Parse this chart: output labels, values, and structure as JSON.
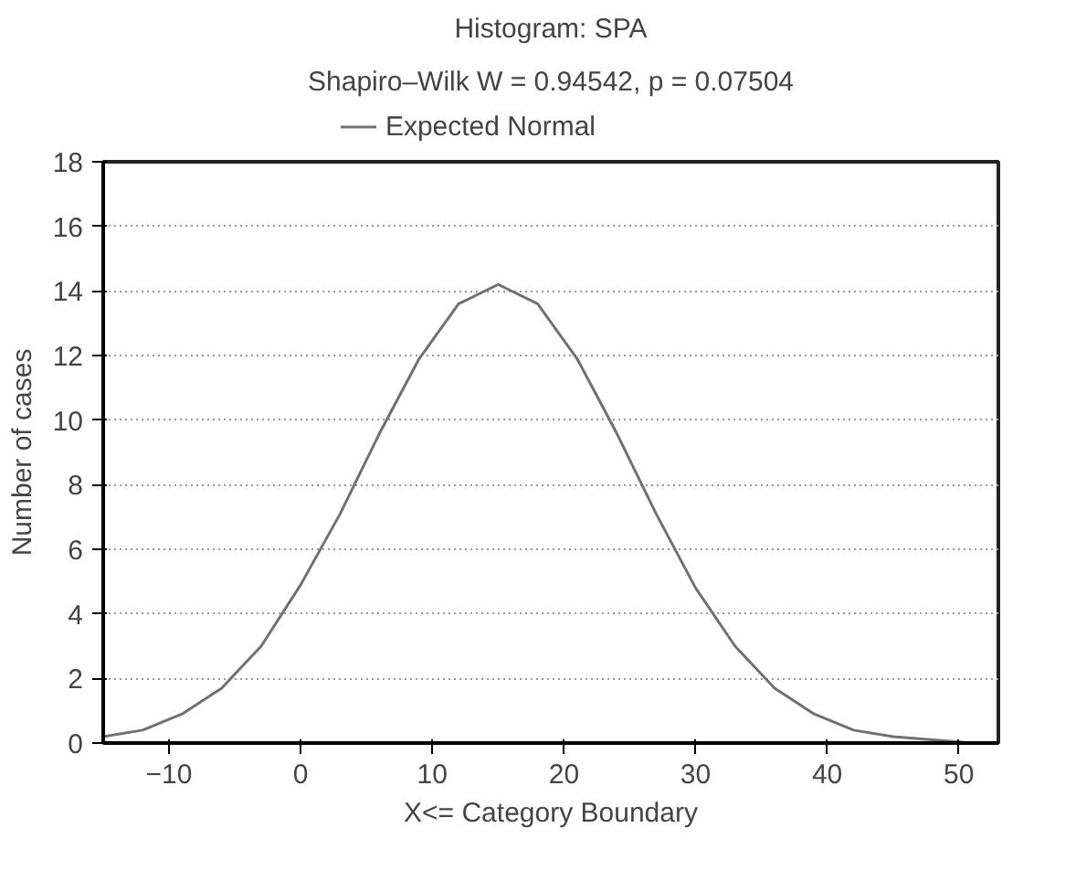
{
  "chart_data": {
    "type": "line",
    "title": "Histogram: SPA",
    "subtitle": "Shapiro–Wilk W = 0.94542, p = 0.07504",
    "xlabel": "X<= Category Boundary",
    "ylabel": "Number of cases",
    "x": [
      -15,
      -12,
      -9,
      -6,
      -3,
      0,
      3,
      6,
      9,
      12,
      15,
      18,
      21,
      24,
      27,
      30,
      33,
      36,
      39,
      42,
      45,
      48,
      51
    ],
    "series": [
      {
        "name": "Expected Normal",
        "color": "#707070",
        "values": [
          0.2,
          0.4,
          0.9,
          1.7,
          3.0,
          4.9,
          7.1,
          9.6,
          11.9,
          13.6,
          14.2,
          13.6,
          11.9,
          9.6,
          7.1,
          4.8,
          3.0,
          1.7,
          0.9,
          0.4,
          0.2,
          0.1,
          0.0
        ]
      }
    ],
    "xlim": [
      -15,
      53
    ],
    "xticks": [
      {
        "value": -10,
        "label": "−10"
      },
      0,
      10,
      20,
      30,
      40,
      50
    ],
    "ylim": [
      0,
      18
    ],
    "yticks": [
      0,
      2,
      4,
      6,
      8,
      10,
      12,
      14,
      16,
      18
    ],
    "grid": "y",
    "legend": "top",
    "line_style": "solid"
  }
}
